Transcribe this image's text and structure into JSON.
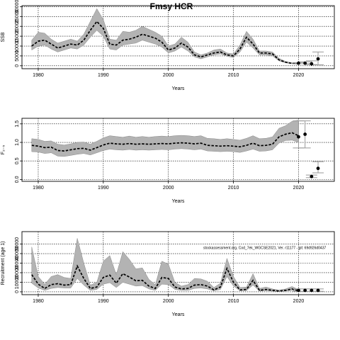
{
  "figure": {
    "title": "Fmsy HCR"
  },
  "chart_data": [
    {
      "type": "line",
      "panel": "ssb",
      "ylabel": "SSB",
      "xlabel": "Years",
      "xlim": [
        1977.5,
        2025.5
      ],
      "ylim": [
        -1500,
        30500
      ],
      "x_ticks": [
        1980,
        1990,
        2000,
        2010,
        2020
      ],
      "y_ticks": [
        0,
        5000,
        10000,
        15000,
        20000,
        25000,
        30000
      ],
      "y_tick_labels": [
        "0",
        "5000",
        "10000",
        "15000",
        "20000",
        "25000",
        "30000"
      ],
      "grid": true,
      "x": [
        1979,
        1980,
        1981,
        1982,
        1983,
        1984,
        1985,
        1986,
        1987,
        1988,
        1989,
        1990,
        1991,
        1992,
        1993,
        1994,
        1995,
        1996,
        1997,
        1998,
        1999,
        2000,
        2001,
        2002,
        2003,
        2004,
        2005,
        2006,
        2007,
        2008,
        2009,
        2010,
        2011,
        2012,
        2013,
        2014,
        2015,
        2016,
        2017,
        2018,
        2019,
        2020
      ],
      "median": [
        10000,
        12500,
        13000,
        11000,
        9000,
        10000,
        11000,
        10500,
        13000,
        18000,
        22500,
        19000,
        11000,
        10500,
        13000,
        13500,
        14500,
        16000,
        15000,
        14000,
        12000,
        8000,
        9000,
        11500,
        9500,
        5500,
        4500,
        5500,
        6500,
        7000,
        5500,
        5000,
        8500,
        14500,
        11000,
        6500,
        6500,
        6000,
        3000,
        1800,
        1200,
        1000
      ],
      "lower": [
        8000,
        10000,
        10500,
        8500,
        7000,
        8000,
        9000,
        8500,
        10500,
        14500,
        18000,
        15000,
        8500,
        8000,
        10500,
        11000,
        11500,
        13000,
        12000,
        11000,
        9500,
        6500,
        7500,
        9500,
        7500,
        4500,
        3500,
        4500,
        5500,
        6000,
        4800,
        4200,
        7000,
        12000,
        9000,
        5500,
        5500,
        5000,
        2500,
        1500,
        1000,
        800
      ],
      "upper": [
        13000,
        17000,
        16500,
        13500,
        11500,
        12500,
        13500,
        12500,
        16000,
        22500,
        29000,
        23500,
        13500,
        13000,
        17500,
        17000,
        18000,
        20000,
        18500,
        17000,
        15000,
        10000,
        11000,
        14500,
        12000,
        7000,
        5500,
        6500,
        8000,
        8500,
        6500,
        6000,
        10500,
        17500,
        13500,
        7500,
        7500,
        7000,
        3800,
        2200,
        1500,
        1300
      ],
      "forecast": {
        "x": [
          2020,
          2021,
          2022,
          2023
        ],
        "median": [
          1300,
          1300,
          1000,
          3500
        ],
        "lower": [
          1000,
          1000,
          600,
          500
        ],
        "upper": [
          1600,
          2000,
          2500,
          7000
        ]
      }
    },
    {
      "type": "line",
      "panel": "f",
      "ylabel": "F₂₋₅",
      "xlabel": "Years",
      "xlim": [
        1977.5,
        2025.5
      ],
      "ylim": [
        -0.05,
        1.65
      ],
      "x_ticks": [
        1980,
        1990,
        2000,
        2010,
        2020
      ],
      "y_ticks": [
        0,
        0.5,
        1.0,
        1.5
      ],
      "y_tick_labels": [
        "0.0",
        "0.5",
        "1.0",
        "1.5"
      ],
      "grid": true,
      "x": [
        1979,
        1980,
        1981,
        1982,
        1983,
        1984,
        1985,
        1986,
        1987,
        1988,
        1989,
        1990,
        1991,
        1992,
        1993,
        1994,
        1995,
        1996,
        1997,
        1998,
        1999,
        2000,
        2001,
        2002,
        2003,
        2004,
        2005,
        2006,
        2007,
        2008,
        2009,
        2010,
        2011,
        2012,
        2013,
        2014,
        2015,
        2016,
        2017,
        2018,
        2019,
        2020
      ],
      "median": [
        0.92,
        0.9,
        0.86,
        0.87,
        0.78,
        0.77,
        0.8,
        0.83,
        0.84,
        0.79,
        0.86,
        0.93,
        0.98,
        0.96,
        0.95,
        0.97,
        0.95,
        0.96,
        0.95,
        0.96,
        0.97,
        0.96,
        0.98,
        0.99,
        0.98,
        0.96,
        0.98,
        0.92,
        0.91,
        0.9,
        0.91,
        0.9,
        0.88,
        0.92,
        0.98,
        0.91,
        0.92,
        0.95,
        1.15,
        1.22,
        1.26,
        1.18
      ],
      "lower": [
        0.75,
        0.74,
        0.7,
        0.72,
        0.63,
        0.62,
        0.65,
        0.68,
        0.7,
        0.66,
        0.72,
        0.78,
        0.82,
        0.8,
        0.79,
        0.81,
        0.79,
        0.8,
        0.79,
        0.8,
        0.81,
        0.8,
        0.82,
        0.83,
        0.82,
        0.8,
        0.82,
        0.77,
        0.76,
        0.75,
        0.76,
        0.75,
        0.73,
        0.77,
        0.82,
        0.76,
        0.77,
        0.8,
        0.98,
        1.05,
        1.06,
        1.0
      ],
      "upper": [
        1.1,
        1.08,
        1.03,
        1.04,
        0.95,
        0.93,
        0.96,
        1.0,
        1.01,
        0.95,
        1.03,
        1.12,
        1.18,
        1.16,
        1.14,
        1.17,
        1.14,
        1.16,
        1.14,
        1.16,
        1.17,
        1.16,
        1.18,
        1.19,
        1.18,
        1.16,
        1.18,
        1.11,
        1.1,
        1.08,
        1.1,
        1.08,
        1.06,
        1.11,
        1.18,
        1.1,
        1.11,
        1.15,
        1.38,
        1.45,
        1.57,
        1.6
      ],
      "forecast": {
        "x": [
          2020,
          2021,
          2022,
          2023
        ],
        "median": [
          1.15,
          1.22,
          0.08,
          0.3
        ],
        "lower": [
          0.85,
          0.85,
          0.05,
          0.18
        ],
        "upper": [
          1.58,
          1.58,
          0.12,
          0.48
        ]
      }
    },
    {
      "type": "line",
      "panel": "recruitment",
      "ylabel": "Recruitment (age 1)",
      "xlabel": "Years",
      "xlim": [
        1977.5,
        2025.5
      ],
      "ylim": [
        -3000,
        63000
      ],
      "x_ticks": [
        1980,
        1990,
        2000,
        2010,
        2020
      ],
      "y_ticks": [
        0,
        10000,
        20000,
        30000,
        40000,
        50000
      ],
      "y_tick_labels": [
        "0",
        "10000",
        "20000",
        "30000",
        "40000",
        "50000"
      ],
      "grid": true,
      "annotation": "stockassessment.org, Cod_7ek_WGCSE2021, Ver. r11177 - git: 69d926d0437",
      "x": [
        1979,
        1980,
        1981,
        1982,
        1983,
        1984,
        1985,
        1986,
        1987,
        1988,
        1989,
        1990,
        1991,
        1992,
        1993,
        1994,
        1995,
        1996,
        1997,
        1998,
        1999,
        2000,
        2001,
        2002,
        2003,
        2004,
        2005,
        2006,
        2007,
        2008,
        2009,
        2010,
        2011,
        2012,
        2013,
        2014,
        2015,
        2016,
        2017,
        2018,
        2019,
        2020
      ],
      "median": [
        18000,
        8000,
        3500,
        7500,
        8500,
        7000,
        7500,
        27000,
        14000,
        3500,
        5000,
        15000,
        17500,
        9000,
        19000,
        15500,
        11500,
        12000,
        6000,
        3500,
        15000,
        14000,
        5000,
        3000,
        3500,
        7000,
        7500,
        6000,
        2000,
        5000,
        24500,
        10000,
        2000,
        2500,
        12000,
        1500,
        2500,
        1500,
        800,
        1500,
        3000,
        1000
      ],
      "lower": [
        9000,
        4000,
        1500,
        3500,
        4500,
        4000,
        4000,
        14000,
        7000,
        1500,
        2500,
        8000,
        9500,
        4500,
        10000,
        8000,
        6000,
        6500,
        3000,
        1500,
        8000,
        7500,
        2500,
        1500,
        1500,
        3500,
        4000,
        3000,
        1000,
        2500,
        16000,
        6000,
        1000,
        1200,
        7000,
        800,
        1200,
        700,
        400,
        800,
        1500,
        500
      ],
      "upper": [
        47000,
        16000,
        8000,
        16000,
        18000,
        15000,
        14000,
        56000,
        30000,
        7000,
        10000,
        32000,
        38000,
        18000,
        42000,
        34000,
        24000,
        25000,
        13000,
        7500,
        32000,
        29000,
        10000,
        6000,
        7500,
        14000,
        13500,
        11000,
        4500,
        9000,
        35000,
        16000,
        4500,
        5000,
        19000,
        3500,
        5000,
        3000,
        1800,
        3000,
        5500,
        2200
      ],
      "forecast": {
        "x": [
          2020,
          2021,
          2022,
          2023
        ],
        "median": [
          1500,
          1500,
          1500,
          1500
        ],
        "lower": [
          500,
          500,
          500,
          500
        ],
        "upper": [
          3000,
          3000,
          3000,
          3000
        ]
      }
    }
  ]
}
